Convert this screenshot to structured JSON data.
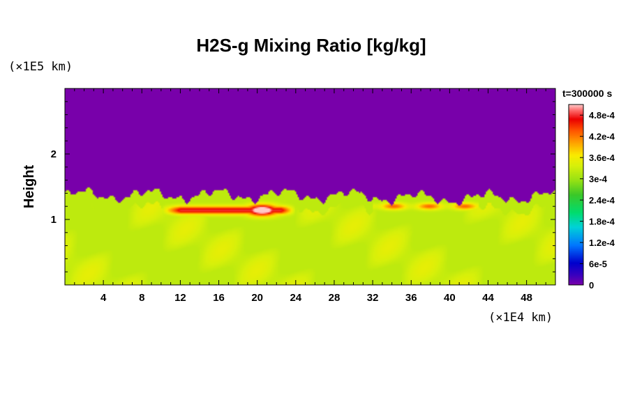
{
  "chart_data": {
    "type": "heatmap",
    "title": "H2S-g Mixing Ratio [kg/kg]",
    "ylabel": "Height",
    "x_unit": "(×1E4 km)",
    "y_unit": "(×1E5 km)",
    "time_label": "t=300000 s",
    "xlim": [
      0,
      51
    ],
    "ylim": [
      0,
      3
    ],
    "x_ticks": [
      4,
      8,
      12,
      16,
      20,
      24,
      28,
      32,
      36,
      40,
      44,
      48
    ],
    "x_tick_labels": [
      "4",
      "8",
      "12",
      "16",
      "20",
      "24",
      "28",
      "32",
      "36",
      "40",
      "44",
      "48"
    ],
    "y_ticks": [
      1,
      2
    ],
    "y_tick_labels": [
      "1",
      "2"
    ],
    "colorbar": {
      "vmin": 0,
      "vmax": 0.00051,
      "ticks": [
        0,
        6e-05,
        0.00012,
        0.00018,
        0.00024,
        0.0003,
        0.00036,
        0.00042,
        0.00048
      ],
      "tick_labels": [
        "0",
        "6e-5",
        "1.2e-4",
        "1.8e-4",
        "2.4e-4",
        "3e-4",
        "3.6e-4",
        "4.2e-4",
        "4.8e-4"
      ]
    },
    "field_summary": {
      "upper_layer_value": 0,
      "interface_height_mean": 1.37,
      "lower_layer_value": 0.00032,
      "peak_region_x": [
        11,
        23
      ],
      "peak_region_y": [
        1.0,
        1.3
      ],
      "peak_value": 0.00051
    }
  }
}
